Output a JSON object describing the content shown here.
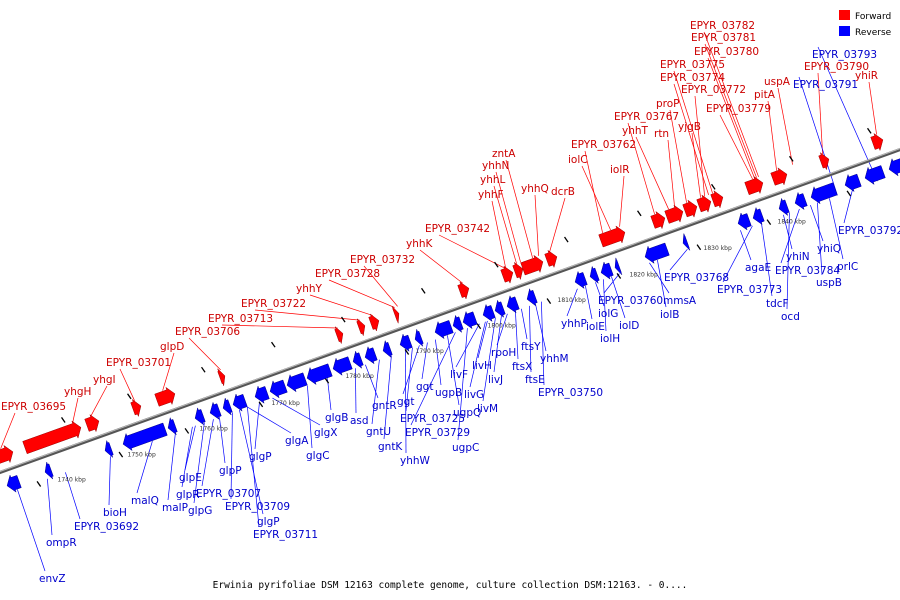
{
  "legend": [
    {
      "label": "Forward",
      "color": "#ff0000"
    },
    {
      "label": "Reverse",
      "color": "#0000ff"
    }
  ],
  "footer": "Erwinia pyrifoliae DSM 12163 complete genome, culture collection DSM:12163. - 0....",
  "colors": {
    "forward": "#ff0000",
    "reverse": "#0000ff",
    "forward_label": "#cc0000",
    "reverse_label": "#0000cc",
    "axis": "#888888"
  },
  "axis_ticks": [
    "1740 kbp",
    "1750 kbp",
    "1760 kbp",
    "1770 kbp",
    "1780 kbp",
    "1790 kbp",
    "1800 kbp",
    "1810 kbp",
    "1820 kbp",
    "1830 kbp",
    "1840 kbp"
  ],
  "forward_genes": [
    "EPYR_03695",
    "yhgH",
    "yhgI",
    "EPYR_03701",
    "glpD",
    "EPYR_03706",
    "EPYR_03713",
    "EPYR_03722",
    "yhhY",
    "EPYR_03728",
    "EPYR_03732",
    "yhhK",
    "EPYR_03742",
    "yhhF",
    "yhhL",
    "yhhN",
    "zntA",
    "yhhQ",
    "dcrB",
    "EPYR_03762",
    "iolC",
    "iolR",
    "EPYR_03767",
    "yhhT",
    "rtn",
    "proP",
    "yjgB",
    "EPYR_03772",
    "EPYR_03774",
    "EPYR_03775",
    "EPYR_03779",
    "EPYR_03780",
    "EPYR_03781",
    "EPYR_03782",
    "pitA",
    "uspA",
    "EPYR_03790",
    "yhiR"
  ],
  "reverse_genes": [
    "envZ",
    "ompR",
    "EPYR_03692",
    "bioH",
    "malQ",
    "malP",
    "glpR",
    "glpE",
    "glpG",
    "EPYR_03707",
    "glpP",
    "EPYR_03709",
    "glgP",
    "EPYR_03711",
    "glgA",
    "glgP",
    "glgX",
    "glgC",
    "glgB",
    "asd",
    "gntR",
    "gntU",
    "gntK",
    "yhhW",
    "ggt",
    "EPYR_03725",
    "ggt",
    "ugpB",
    "ugpQ",
    "EPYR_03729",
    "ugpC",
    "livF",
    "livG",
    "livH",
    "livM",
    "livJ",
    "rpoH",
    "ftsX",
    "ftsY",
    "ftsE",
    "yhhM",
    "EPYR_03750",
    "yhhP",
    "iolE",
    "iolG",
    "iolH",
    "iolD",
    "EPYR_03760",
    "mmsA",
    "iolB",
    "EPYR_03768",
    "agaE",
    "EPYR_03773",
    "tdcF",
    "yhiN",
    "ocd",
    "EPYR_03784",
    "yhiQ",
    "uspB",
    "prlC",
    "EPYR_03792",
    "EPYR_03791",
    "EPYR_03793"
  ]
}
